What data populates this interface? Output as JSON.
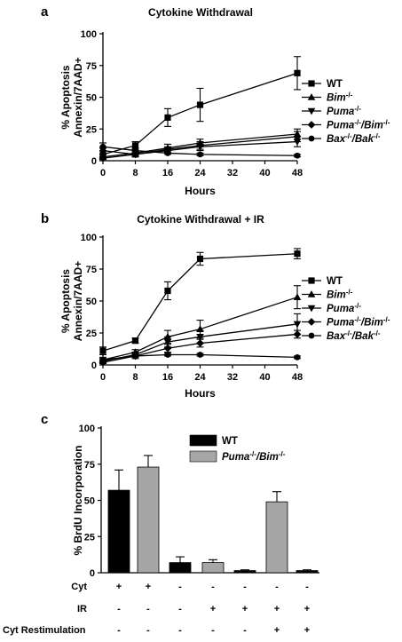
{
  "chart_data": [
    {
      "panel": "a",
      "type": "line",
      "title": "Cytokine Withdrawal",
      "xlabel": "Hours",
      "ylabel": [
        "% Apoptosis",
        "Annexin/7AAD+"
      ],
      "x": [
        0,
        8,
        16,
        24,
        48
      ],
      "xticks": [
        0,
        8,
        16,
        24,
        32,
        40,
        48
      ],
      "yticks": [
        0,
        25,
        50,
        75,
        100
      ],
      "xlim": [
        0,
        48
      ],
      "ylim": [
        0,
        100
      ],
      "legend_position": "right",
      "series": [
        {
          "name": "WT",
          "marker": "square",
          "values": [
            5,
            12,
            34,
            44,
            69
          ],
          "errors": [
            3,
            3,
            7,
            13,
            13
          ]
        },
        {
          "name": "Bim-/-",
          "name_html": "<tspan font-style=\"italic\">Bim</tspan><tspan baseline-shift=\"super\" font-size=\"8\">-/-</tspan>",
          "marker": "triangle-up",
          "values": [
            3,
            6,
            10,
            14,
            21
          ],
          "errors": [
            2,
            2,
            3,
            3,
            4
          ]
        },
        {
          "name": "Puma-/-",
          "name_html": "<tspan font-style=\"italic\">Puma</tspan><tspan baseline-shift=\"super\" font-size=\"8\">-/-</tspan>",
          "marker": "triangle-down",
          "values": [
            8,
            5,
            8,
            11,
            15
          ],
          "errors": [
            3,
            2,
            2,
            3,
            4
          ]
        },
        {
          "name": "Puma-/-/Bim-/-",
          "name_html": "<tspan font-style=\"italic\">Puma</tspan><tspan baseline-shift=\"super\" font-size=\"8\">-/-</tspan><tspan font-style=\"italic\">/Bim</tspan><tspan baseline-shift=\"super\" font-size=\"8\">-/-</tspan>",
          "marker": "diamond",
          "values": [
            2,
            5,
            9,
            12,
            19
          ],
          "errors": [
            1,
            2,
            2,
            3,
            4
          ]
        },
        {
          "name": "Bax-/-/Bak-/-",
          "name_html": "<tspan font-style=\"italic\">Bax</tspan><tspan baseline-shift=\"super\" font-size=\"8\">-/-</tspan><tspan font-style=\"italic\">/Bak</tspan><tspan baseline-shift=\"super\" font-size=\"8\">-/-</tspan>",
          "marker": "circle",
          "values": [
            11,
            8,
            6,
            5,
            4
          ],
          "errors": [
            3,
            2,
            1,
            1,
            1
          ]
        }
      ]
    },
    {
      "panel": "b",
      "type": "line",
      "title": "Cytokine Withdrawal + IR",
      "xlabel": "Hours",
      "ylabel": [
        "% Apoptosis",
        "Annexin/7AAD+"
      ],
      "x": [
        0,
        8,
        16,
        24,
        48
      ],
      "xticks": [
        0,
        8,
        16,
        24,
        32,
        40,
        48
      ],
      "yticks": [
        0,
        25,
        50,
        75,
        100
      ],
      "xlim": [
        0,
        48
      ],
      "ylim": [
        0,
        100
      ],
      "legend_position": "right",
      "series": [
        {
          "name": "WT",
          "marker": "square",
          "values": [
            11,
            19,
            58,
            83,
            87
          ],
          "errors": [
            3,
            2,
            7,
            5,
            4
          ]
        },
        {
          "name": "Bim-/-",
          "name_html": "<tspan font-style=\"italic\">Bim</tspan><tspan baseline-shift=\"super\" font-size=\"8\">-/-</tspan>",
          "marker": "triangle-up",
          "values": [
            4,
            10,
            22,
            28,
            53
          ],
          "errors": [
            2,
            2,
            5,
            7,
            9
          ]
        },
        {
          "name": "Puma-/-",
          "name_html": "<tspan font-style=\"italic\">Puma</tspan><tspan baseline-shift=\"super\" font-size=\"8\">-/-</tspan>",
          "marker": "triangle-down",
          "values": [
            3,
            8,
            18,
            22,
            32
          ],
          "errors": [
            1,
            2,
            4,
            5,
            8
          ]
        },
        {
          "name": "Puma-/-/Bim-/-",
          "name_html": "<tspan font-style=\"italic\">Puma</tspan><tspan baseline-shift=\"super\" font-size=\"8\">-/-</tspan><tspan font-style=\"italic\">/Bim</tspan><tspan baseline-shift=\"super\" font-size=\"8\">-/-</tspan>",
          "marker": "diamond",
          "values": [
            2,
            7,
            13,
            17,
            24
          ],
          "errors": [
            1,
            2,
            3,
            3,
            3
          ]
        },
        {
          "name": "Bax-/-/Bak-/-",
          "name_html": "<tspan font-style=\"italic\">Bax</tspan><tspan baseline-shift=\"super\" font-size=\"8\">-/-</tspan><tspan font-style=\"italic\">/Bak</tspan><tspan baseline-shift=\"super\" font-size=\"8\">-/-</tspan>",
          "marker": "circle",
          "values": [
            4,
            7,
            8,
            8,
            6
          ],
          "errors": [
            1,
            1,
            1,
            1,
            1
          ]
        }
      ]
    },
    {
      "panel": "c",
      "type": "bar",
      "ylabel": "% BrdU Incorporation",
      "yticks": [
        0,
        25,
        50,
        75,
        100
      ],
      "ylim": [
        0,
        100
      ],
      "legend_position": "top-center",
      "legend": [
        {
          "name": "WT",
          "color": "#000000"
        },
        {
          "name": "Puma-/-/Bim-/-",
          "name_html": "<tspan font-style=\"italic\">Puma</tspan><tspan baseline-shift=\"super\" font-size=\"8\">-/-</tspan><tspan font-style=\"italic\">/Bim</tspan><tspan baseline-shift=\"super\" font-size=\"8\">-/-</tspan>",
          "color": "#a6a6a6"
        }
      ],
      "bars": [
        {
          "group": "WT",
          "value": 57,
          "error": 14
        },
        {
          "group": "Puma-/-/Bim-/-",
          "value": 73,
          "error": 8
        },
        {
          "group": "WT",
          "value": 7,
          "error": 4
        },
        {
          "group": "Puma-/-/Bim-/-",
          "value": 7,
          "error": 2
        },
        {
          "group": "WT",
          "value": 1.5,
          "error": 0.5
        },
        {
          "group": "Puma-/-/Bim-/-",
          "value": 49,
          "error": 7
        },
        {
          "group": "WT",
          "value": 1.5,
          "error": 0.5
        }
      ],
      "conditions": [
        {
          "label": "Cyt",
          "values": [
            "+",
            "+",
            "-",
            "-",
            "-",
            "-",
            "-"
          ]
        },
        {
          "label": "IR",
          "values": [
            "-",
            "-",
            "-",
            "+",
            "+",
            "+",
            "+"
          ]
        },
        {
          "label": "Cyt Restimulation",
          "values": [
            "-",
            "-",
            "-",
            "-",
            "-",
            "+",
            "+"
          ]
        }
      ]
    }
  ]
}
